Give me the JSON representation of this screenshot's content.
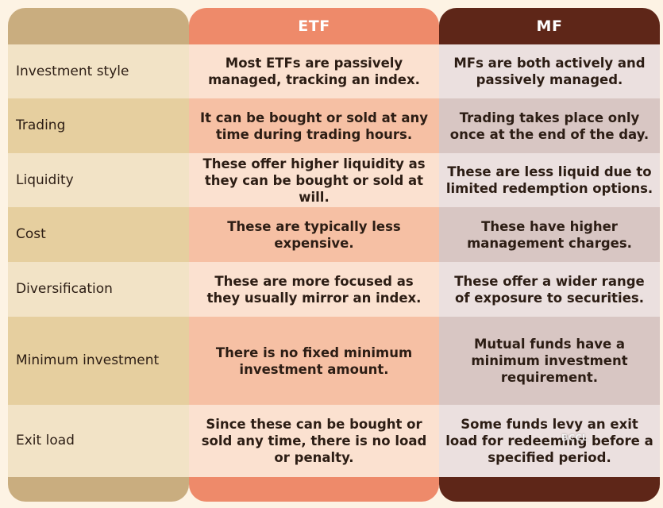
{
  "headers": {
    "etf": "ETF",
    "mf": "MF"
  },
  "rows": [
    {
      "label": "Investment style",
      "etf": "Most ETFs are passively managed, tracking an index.",
      "mf": "MFs are both actively and passively managed."
    },
    {
      "label": "Trading",
      "etf": "It can be bought or sold at any time during trading hours.",
      "mf": "Trading takes place only once at the end of the day."
    },
    {
      "label": "Liquidity",
      "etf": "These offer higher liquidity as they can be bought or sold at will.",
      "mf": "These are less liquid due to limited redemption options."
    },
    {
      "label": "Cost",
      "etf": "These are typically less expensive.",
      "mf": "These have higher management charges."
    },
    {
      "label": "Diversification",
      "etf": "These are more focused as they usually mirror an index.",
      "mf": "These offer a wider range of exposure to securities."
    },
    {
      "label": "Minimum investment",
      "etf": "There is no fixed minimum investment amount.",
      "mf": "Mutual funds have a minimum investment requirement."
    },
    {
      "label": "Exit load",
      "etf": "Since these can be bought or sold any time, there is no load or penalty.",
      "mf": "Some funds levy an exit load for redeeming before a specified period."
    }
  ],
  "watermark": "BCCL"
}
